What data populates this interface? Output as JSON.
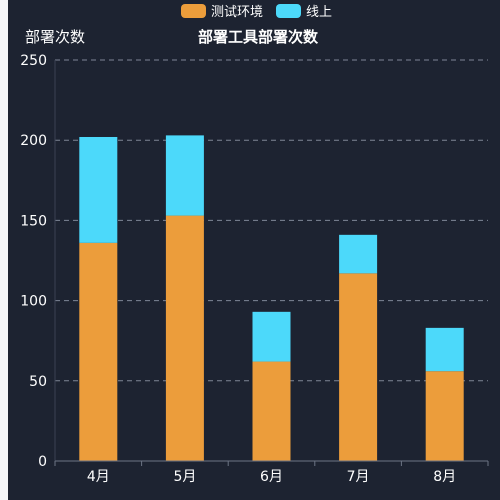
{
  "chart_data": {
    "type": "bar",
    "stacked": true,
    "title": "部署工具部署次数",
    "ylabel": "部署次数",
    "xlabel": "",
    "categories": [
      "4月",
      "5月",
      "6月",
      "7月",
      "8月"
    ],
    "series": [
      {
        "name": "测试环境",
        "color": "#ec9d3b",
        "values": [
          136,
          153,
          62,
          117,
          56
        ]
      },
      {
        "name": "线上",
        "color": "#4cd9fa",
        "values": [
          66,
          50,
          31,
          24,
          27
        ]
      }
    ],
    "ylim": [
      0,
      250
    ],
    "yticks": [
      0,
      50,
      100,
      150,
      200,
      250
    ],
    "grid": true,
    "legend_position": "top-center"
  }
}
